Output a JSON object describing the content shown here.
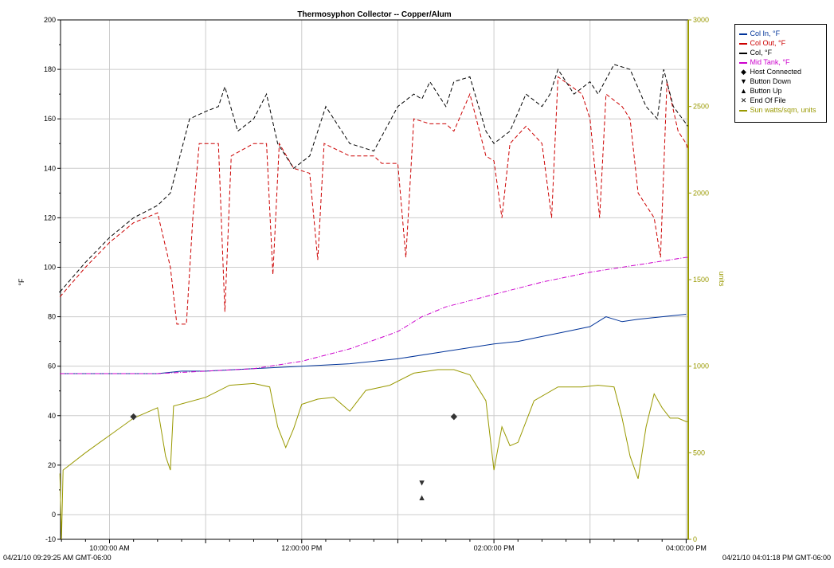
{
  "chart_data": {
    "type": "line",
    "title": "Thermosyphon Collector -- Copper/Alum",
    "ylabel": "°F",
    "y2label": "units",
    "ylim": [
      -10,
      200
    ],
    "y2lim": [
      0,
      3000
    ],
    "yticks": [
      "-10",
      "0",
      "20",
      "40",
      "60",
      "80",
      "100",
      "120",
      "140",
      "160",
      "180",
      "200"
    ],
    "y2ticks": [
      "0",
      "500",
      "1000",
      "1500",
      "2000",
      "2500",
      "3000"
    ],
    "x_range": [
      "04/21/10 09:29:25",
      "04/21/10 16:01:18"
    ],
    "x_tick_labels": [
      "10:00:00 AM",
      "12:00:00 PM",
      "02:00:00 PM",
      "04:00:00 PM"
    ],
    "x_start_label": "04/21/10 09:29:25 AM GMT-06:00",
    "x_end_label": "04/21/10 04:01:18 PM GMT-06:00",
    "grid": true,
    "legend_position": "top-right",
    "legend": [
      {
        "label": "Col In, °F",
        "color": "#003399",
        "style": "solid"
      },
      {
        "label": "Col Out, °F",
        "color": "#cc0000",
        "style": "dashed"
      },
      {
        "label": "Col, °F",
        "color": "#000000",
        "style": "dashed"
      },
      {
        "label": "Mid Tank, °F",
        "color": "#cc00cc",
        "style": "dashdot"
      },
      {
        "label": "Host Connected",
        "symbol": "◆"
      },
      {
        "label": "Button Down",
        "symbol": "▼"
      },
      {
        "label": "Button Up",
        "symbol": "▲"
      },
      {
        "label": "End Of File",
        "symbol": "✕"
      },
      {
        "label": "Sun watts/sqm, units",
        "color": "#999900",
        "style": "solid"
      }
    ],
    "series": [
      {
        "name": "Col In, °F",
        "axis": "left",
        "color": "#003399",
        "points": [
          [
            "09:29",
            57
          ],
          [
            "10:00",
            57
          ],
          [
            "10:30",
            57
          ],
          [
            "10:45",
            58
          ],
          [
            "11:00",
            58
          ],
          [
            "11:30",
            59
          ],
          [
            "12:00",
            60
          ],
          [
            "12:30",
            61
          ],
          [
            "13:00",
            63
          ],
          [
            "13:30",
            66
          ],
          [
            "14:00",
            69
          ],
          [
            "14:15",
            70
          ],
          [
            "14:30",
            72
          ],
          [
            "14:45",
            74
          ],
          [
            "15:00",
            76
          ],
          [
            "15:10",
            80
          ],
          [
            "15:20",
            78
          ],
          [
            "15:30",
            79
          ],
          [
            "16:00",
            81
          ]
        ]
      },
      {
        "name": "Col Out, °F",
        "axis": "left",
        "color": "#cc0000",
        "points": [
          [
            "09:29",
            88
          ],
          [
            "09:45",
            100
          ],
          [
            "10:00",
            110
          ],
          [
            "10:15",
            118
          ],
          [
            "10:30",
            122
          ],
          [
            "10:38",
            100
          ],
          [
            "10:42",
            77
          ],
          [
            "10:48",
            77
          ],
          [
            "10:52",
            120
          ],
          [
            "10:56",
            150
          ],
          [
            "11:04",
            150
          ],
          [
            "11:08",
            150
          ],
          [
            "11:12",
            82
          ],
          [
            "11:16",
            145
          ],
          [
            "11:30",
            150
          ],
          [
            "11:38",
            150
          ],
          [
            "11:42",
            97
          ],
          [
            "11:46",
            150
          ],
          [
            "11:55",
            140
          ],
          [
            "12:05",
            138
          ],
          [
            "12:10",
            103
          ],
          [
            "12:14",
            150
          ],
          [
            "12:30",
            145
          ],
          [
            "12:45",
            145
          ],
          [
            "12:50",
            142
          ],
          [
            "13:00",
            142
          ],
          [
            "13:05",
            104
          ],
          [
            "13:10",
            160
          ],
          [
            "13:20",
            158
          ],
          [
            "13:30",
            158
          ],
          [
            "13:35",
            155
          ],
          [
            "13:45",
            170
          ],
          [
            "13:55",
            145
          ],
          [
            "14:00",
            143
          ],
          [
            "14:05",
            120
          ],
          [
            "14:10",
            150
          ],
          [
            "14:20",
            157
          ],
          [
            "14:30",
            150
          ],
          [
            "14:36",
            120
          ],
          [
            "14:40",
            177
          ],
          [
            "14:55",
            170
          ],
          [
            "15:00",
            160
          ],
          [
            "15:06",
            120
          ],
          [
            "15:10",
            170
          ],
          [
            "15:20",
            165
          ],
          [
            "15:25",
            160
          ],
          [
            "15:30",
            130
          ],
          [
            "15:40",
            120
          ],
          [
            "15:44",
            104
          ],
          [
            "15:48",
            175
          ],
          [
            "15:55",
            155
          ],
          [
            "16:00",
            150
          ],
          [
            "16:01",
            148
          ]
        ]
      },
      {
        "name": "Col, °F",
        "axis": "left",
        "color": "#000000",
        "points": [
          [
            "09:29",
            90
          ],
          [
            "09:45",
            102
          ],
          [
            "10:00",
            112
          ],
          [
            "10:15",
            120
          ],
          [
            "10:30",
            125
          ],
          [
            "10:38",
            130
          ],
          [
            "10:50",
            160
          ],
          [
            "11:00",
            163
          ],
          [
            "11:08",
            165
          ],
          [
            "11:12",
            173
          ],
          [
            "11:20",
            155
          ],
          [
            "11:30",
            160
          ],
          [
            "11:38",
            170
          ],
          [
            "11:45",
            150
          ],
          [
            "11:55",
            140
          ],
          [
            "12:05",
            145
          ],
          [
            "12:15",
            165
          ],
          [
            "12:30",
            150
          ],
          [
            "12:45",
            147
          ],
          [
            "13:00",
            165
          ],
          [
            "13:10",
            170
          ],
          [
            "13:15",
            168
          ],
          [
            "13:20",
            175
          ],
          [
            "13:30",
            165
          ],
          [
            "13:35",
            175
          ],
          [
            "13:45",
            177
          ],
          [
            "13:55",
            155
          ],
          [
            "14:00",
            150
          ],
          [
            "14:10",
            155
          ],
          [
            "14:20",
            170
          ],
          [
            "14:30",
            165
          ],
          [
            "14:35",
            170
          ],
          [
            "14:40",
            180
          ],
          [
            "14:50",
            170
          ],
          [
            "15:00",
            175
          ],
          [
            "15:05",
            170
          ],
          [
            "15:15",
            182
          ],
          [
            "15:25",
            180
          ],
          [
            "15:35",
            165
          ],
          [
            "15:42",
            160
          ],
          [
            "15:46",
            180
          ],
          [
            "15:52",
            165
          ],
          [
            "16:00",
            158
          ],
          [
            "16:01",
            157
          ]
        ]
      },
      {
        "name": "Mid Tank, °F",
        "axis": "left",
        "color": "#cc00cc",
        "points": [
          [
            "09:29",
            57
          ],
          [
            "10:00",
            57
          ],
          [
            "10:30",
            57
          ],
          [
            "11:00",
            58
          ],
          [
            "11:30",
            59
          ],
          [
            "12:00",
            62
          ],
          [
            "12:30",
            67
          ],
          [
            "13:00",
            74
          ],
          [
            "13:15",
            80
          ],
          [
            "13:30",
            84
          ],
          [
            "14:00",
            89
          ],
          [
            "14:30",
            94
          ],
          [
            "15:00",
            98
          ],
          [
            "15:30",
            101
          ],
          [
            "16:00",
            104
          ],
          [
            "16:01",
            104
          ]
        ]
      },
      {
        "name": "Sun watts/sqm, units",
        "axis": "right",
        "color": "#999900",
        "points": [
          [
            "09:29",
            380
          ],
          [
            "09:30",
            0
          ],
          [
            "09:31",
            400
          ],
          [
            "09:45",
            500
          ],
          [
            "10:00",
            600
          ],
          [
            "10:15",
            700
          ],
          [
            "10:30",
            760
          ],
          [
            "10:35",
            480
          ],
          [
            "10:38",
            400
          ],
          [
            "10:40",
            770
          ],
          [
            "11:00",
            820
          ],
          [
            "11:15",
            890
          ],
          [
            "11:30",
            900
          ],
          [
            "11:40",
            880
          ],
          [
            "11:45",
            650
          ],
          [
            "11:50",
            530
          ],
          [
            "11:55",
            640
          ],
          [
            "12:00",
            780
          ],
          [
            "12:10",
            810
          ],
          [
            "12:20",
            820
          ],
          [
            "12:30",
            740
          ],
          [
            "12:40",
            860
          ],
          [
            "12:55",
            890
          ],
          [
            "13:10",
            960
          ],
          [
            "13:25",
            980
          ],
          [
            "13:35",
            980
          ],
          [
            "13:45",
            950
          ],
          [
            "13:55",
            800
          ],
          [
            "14:00",
            400
          ],
          [
            "14:05",
            650
          ],
          [
            "14:10",
            540
          ],
          [
            "14:15",
            560
          ],
          [
            "14:25",
            800
          ],
          [
            "14:40",
            880
          ],
          [
            "14:55",
            880
          ],
          [
            "15:05",
            890
          ],
          [
            "15:15",
            880
          ],
          [
            "15:20",
            700
          ],
          [
            "15:25",
            480
          ],
          [
            "15:30",
            350
          ],
          [
            "15:35",
            650
          ],
          [
            "15:40",
            840
          ],
          [
            "15:45",
            760
          ],
          [
            "15:50",
            700
          ],
          [
            "15:55",
            700
          ],
          [
            "16:00",
            680
          ],
          [
            "16:01",
            680
          ]
        ]
      }
    ],
    "markers": [
      {
        "type": "Host Connected",
        "symbol": "◆",
        "time": "10:15",
        "y": 40
      },
      {
        "type": "Host Connected",
        "symbol": "◆",
        "time": "13:35",
        "y": 40
      },
      {
        "type": "Button Down",
        "symbol": "▼",
        "time": "13:15",
        "y": 13
      },
      {
        "type": "Button Up",
        "symbol": "▲",
        "time": "13:15",
        "y": 7
      }
    ]
  }
}
